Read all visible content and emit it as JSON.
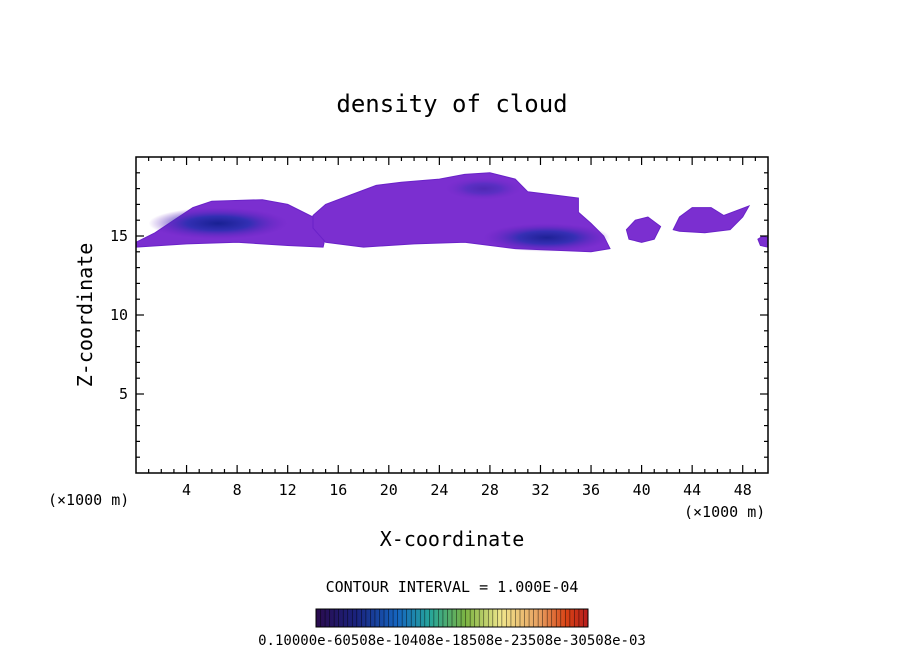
{
  "chart_data": {
    "type": "heatmap",
    "title": "density of cloud",
    "xlabel": "X-coordinate",
    "ylabel": "Z-coordinate",
    "x_unit_left": "(×1000 m)",
    "x_unit_right": "(×1000 m)",
    "xlim": [
      0,
      50
    ],
    "ylim": [
      0,
      20
    ],
    "xticks": [
      4,
      8,
      12,
      16,
      20,
      24,
      28,
      32,
      36,
      40,
      44,
      48
    ],
    "yticks": [
      5,
      10,
      15
    ],
    "contour_interval_label": "CONTOUR INTERVAL = 1.000E-04",
    "colorbar_label": "0.10000e-60508e-10408e-18508e-23508e-30508e-03",
    "colorbar_colors": [
      "#2a0b4d",
      "#1a237e",
      "#283593",
      "#1565c0",
      "#26a69a",
      "#7cb342",
      "#9ccc65",
      "#f0e68c",
      "#e8a060",
      "#d84315",
      "#b71c1c",
      "#6a1b9a"
    ],
    "regions": [
      {
        "name": "cloud-band-left",
        "points": [
          [
            0,
            14.6
          ],
          [
            1.5,
            15.2
          ],
          [
            3,
            16.0
          ],
          [
            4.5,
            16.8
          ],
          [
            6,
            17.2
          ],
          [
            10,
            17.3
          ],
          [
            12,
            17.0
          ],
          [
            14,
            16.2
          ],
          [
            15,
            15.0
          ],
          [
            14.8,
            14.3
          ],
          [
            12,
            14.4
          ],
          [
            8,
            14.6
          ],
          [
            4,
            14.5
          ],
          [
            0,
            14.3
          ]
        ]
      },
      {
        "name": "cloud-band-center",
        "points": [
          [
            14,
            16.3
          ],
          [
            15,
            17.0
          ],
          [
            17,
            17.6
          ],
          [
            19,
            18.2
          ],
          [
            21,
            18.4
          ],
          [
            24,
            18.6
          ],
          [
            26,
            18.9
          ],
          [
            28,
            19.0
          ],
          [
            30,
            18.6
          ],
          [
            31,
            17.8
          ],
          [
            33,
            17.6
          ],
          [
            35,
            17.4
          ],
          [
            35,
            16.5
          ],
          [
            36,
            15.8
          ],
          [
            37,
            15.0
          ],
          [
            37.5,
            14.2
          ],
          [
            36,
            14.0
          ],
          [
            30,
            14.2
          ],
          [
            26,
            14.6
          ],
          [
            22,
            14.5
          ],
          [
            18,
            14.3
          ],
          [
            15,
            14.6
          ],
          [
            14,
            15.5
          ]
        ]
      },
      {
        "name": "cloud-patch-40",
        "points": [
          [
            38.8,
            15.4
          ],
          [
            39.5,
            16.0
          ],
          [
            40.5,
            16.2
          ],
          [
            41.5,
            15.6
          ],
          [
            41,
            14.8
          ],
          [
            40,
            14.6
          ],
          [
            39,
            14.8
          ]
        ]
      },
      {
        "name": "cloud-patch-44",
        "points": [
          [
            42.5,
            15.4
          ],
          [
            43,
            16.2
          ],
          [
            44,
            16.8
          ],
          [
            45.5,
            16.8
          ],
          [
            46.5,
            16.3
          ],
          [
            47.5,
            16.6
          ],
          [
            48.5,
            16.9
          ],
          [
            48,
            16.2
          ],
          [
            47,
            15.4
          ],
          [
            45,
            15.2
          ],
          [
            43,
            15.3
          ]
        ]
      },
      {
        "name": "cloud-patch-edge",
        "points": [
          [
            49.2,
            14.8
          ],
          [
            49.6,
            15.0
          ],
          [
            50,
            14.9
          ],
          [
            50,
            14.3
          ],
          [
            49.4,
            14.4
          ]
        ]
      }
    ],
    "cores": [
      {
        "name": "cloud-core-left",
        "cx": 6.5,
        "cy": 15.8,
        "rx": 5.5,
        "ry": 1.0,
        "level": 0.9
      },
      {
        "name": "cloud-core-right",
        "cx": 32.5,
        "cy": 14.9,
        "rx": 5.0,
        "ry": 0.9,
        "level": 0.85
      },
      {
        "name": "cloud-core-upper",
        "cx": 27.5,
        "cy": 18.0,
        "rx": 3.0,
        "ry": 0.7,
        "level": 0.4
      }
    ]
  }
}
